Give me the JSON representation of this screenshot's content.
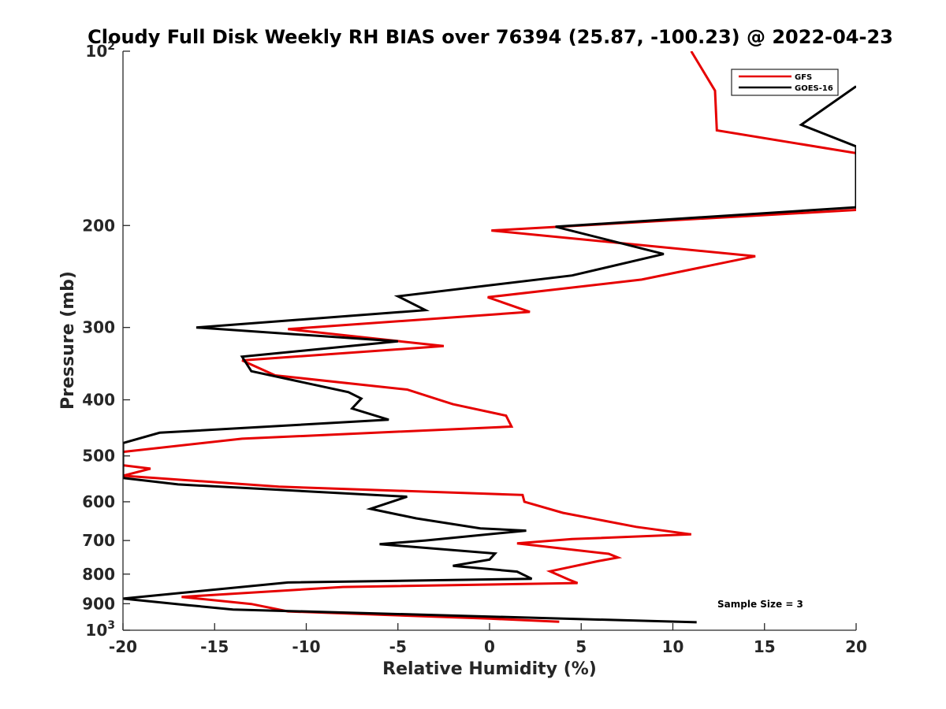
{
  "chart_data": {
    "type": "line",
    "title": "Cloudy Full Disk Weekly RH BIAS over 76394 (25.87, -100.23) @ 2022-04-23",
    "xlabel": "Relative Humidity (%)",
    "ylabel": "Pressure (mb)",
    "xlim": [
      -20,
      20
    ],
    "ylim": [
      100,
      1000
    ],
    "y_scale": "log",
    "y_reversed": true,
    "x_ticks": [
      "-20",
      "-15",
      "-10",
      "-5",
      "0",
      "5",
      "10",
      "15",
      "20"
    ],
    "y_tick_labels": [
      {
        "value": 100,
        "base": "10",
        "exp": "2"
      },
      {
        "value": 200,
        "text": "200"
      },
      {
        "value": 300,
        "text": "300"
      },
      {
        "value": 400,
        "text": "400"
      },
      {
        "value": 500,
        "text": "500"
      },
      {
        "value": 600,
        "text": "600"
      },
      {
        "value": 700,
        "text": "700"
      },
      {
        "value": 800,
        "text": "800"
      },
      {
        "value": 900,
        "text": "900"
      },
      {
        "value": 1000,
        "base": "10",
        "exp": "3"
      }
    ],
    "grid": false,
    "legend_position": "top-right",
    "annotation": "Sample Size = 3",
    "series": [
      {
        "name": "GFS",
        "color": "#e60000",
        "points": [
          [
            11.0,
            100
          ],
          [
            12.3,
            117
          ],
          [
            12.4,
            137
          ],
          [
            20.0,
            150
          ],
          [
            20.0,
            188
          ],
          [
            0.1,
            204
          ],
          [
            14.5,
            226
          ],
          [
            8.3,
            248
          ],
          [
            -0.1,
            266
          ],
          [
            2.2,
            282
          ],
          [
            -11.0,
            302
          ],
          [
            -2.5,
            323
          ],
          [
            -13.5,
            342
          ],
          [
            -11.7,
            363
          ],
          [
            -4.5,
            384
          ],
          [
            -2.0,
            407
          ],
          [
            0.9,
            426
          ],
          [
            1.2,
            445
          ],
          [
            -13.5,
            467
          ],
          [
            -20.0,
            492
          ],
          [
            -20.0,
            519
          ],
          [
            -18.5,
            526
          ],
          [
            -20.0,
            541
          ],
          [
            -11.5,
            565
          ],
          [
            1.8,
            584
          ],
          [
            1.9,
            600
          ],
          [
            4.0,
            627
          ],
          [
            8.0,
            663
          ],
          [
            11.0,
            683
          ],
          [
            4.5,
            696
          ],
          [
            1.5,
            708
          ],
          [
            6.5,
            738
          ],
          [
            7.0,
            749
          ],
          [
            5.9,
            760
          ],
          [
            3.3,
            791
          ],
          [
            4.3,
            817
          ],
          [
            4.8,
            829
          ],
          [
            -8.0,
            842
          ],
          [
            -16.8,
            876
          ],
          [
            -13.0,
            901
          ],
          [
            -11.0,
            928
          ],
          [
            0.0,
            955
          ],
          [
            3.8,
            967
          ]
        ]
      },
      {
        "name": "GOES-16",
        "color": "#000000",
        "points": [
          [
            20.0,
            115
          ],
          [
            17.0,
            134
          ],
          [
            20.0,
            146
          ],
          [
            20.0,
            186
          ],
          [
            3.6,
            201
          ],
          [
            9.5,
            224
          ],
          [
            4.5,
            244
          ],
          [
            -5.0,
            265
          ],
          [
            -3.5,
            280
          ],
          [
            -16.0,
            300
          ],
          [
            -5.0,
            317
          ],
          [
            -13.5,
            337
          ],
          [
            -13.0,
            357
          ],
          [
            -7.7,
            388
          ],
          [
            -7.0,
            398
          ],
          [
            -7.5,
            414
          ],
          [
            -5.5,
            433
          ],
          [
            -18.0,
            456
          ],
          [
            -20.0,
            475
          ],
          [
            -20.0,
            546
          ],
          [
            -17.0,
            560
          ],
          [
            -4.5,
            588
          ],
          [
            -6.5,
            617
          ],
          [
            -4.0,
            641
          ],
          [
            -0.5,
            667
          ],
          [
            2.0,
            673
          ],
          [
            -3.5,
            700
          ],
          [
            -6.0,
            710
          ],
          [
            0.3,
            737
          ],
          [
            0.0,
            755
          ],
          [
            -2.0,
            774
          ],
          [
            1.5,
            792
          ],
          [
            2.3,
            815
          ],
          [
            -11.0,
            827
          ],
          [
            -16.0,
            857
          ],
          [
            -20.0,
            882
          ],
          [
            -16.5,
            905
          ],
          [
            -14.0,
            921
          ],
          [
            11.3,
            969
          ]
        ]
      }
    ]
  }
}
